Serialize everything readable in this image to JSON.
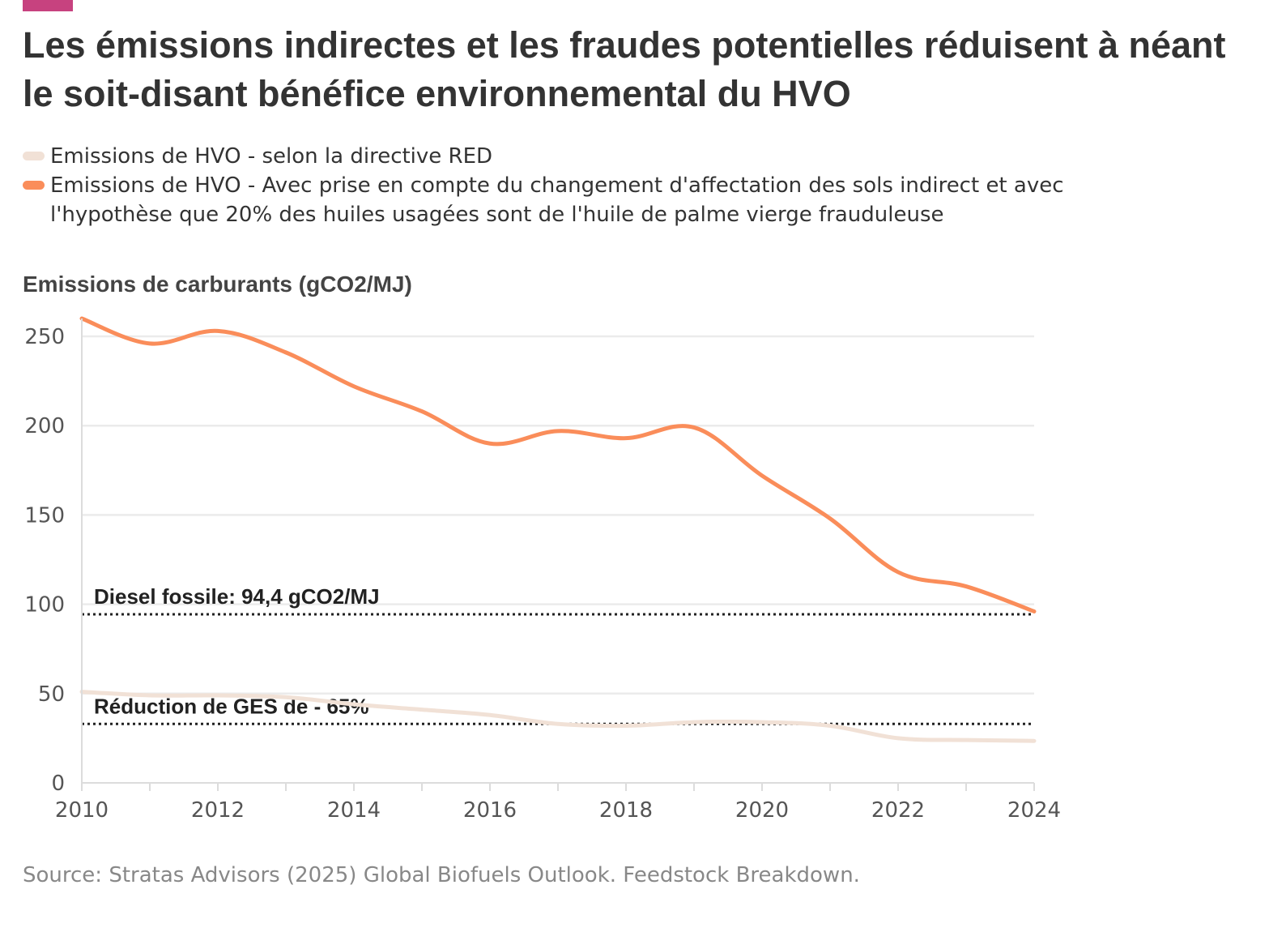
{
  "colors": {
    "accent": "#c7427f",
    "series_red": "#f1e1d6",
    "series_iluc": "#fa8d5a",
    "grid": "#ebebeb",
    "axis": "#dcdcdc",
    "reference_line": "#222222"
  },
  "title": "Les émissions indirectes et les fraudes potentielles réduisent à néant le soit-disant bénéfice environnemental du HVO",
  "legend": [
    {
      "label": "Emissions de HVO - selon la directive RED",
      "color_key": "series_red"
    },
    {
      "label": "Emissions de HVO - Avec prise en compte du changement d'affectation des sols indirect et avec l'hypothèse que 20% des huiles usagées sont de l'huile de palme vierge frauduleuse",
      "color_key": "series_iluc"
    }
  ],
  "source": "Source: Stratas Advisors (2025) Global Biofuels Outlook. Feedstock Breakdown.",
  "chart_data": {
    "type": "line",
    "title": "Les émissions indirectes et les fraudes potentielles réduisent à néant le soit-disant bénéfice environnemental du HVO",
    "ylabel": "Emissions de carburants (gCO2/MJ)",
    "xlabel": "",
    "x": [
      2010,
      2011,
      2012,
      2013,
      2014,
      2015,
      2016,
      2017,
      2018,
      2019,
      2020,
      2021,
      2022,
      2023,
      2024
    ],
    "xlim": [
      2010,
      2024
    ],
    "ylim": [
      0,
      260
    ],
    "x_ticks": [
      "2010",
      "2012",
      "2014",
      "2016",
      "2018",
      "2020",
      "2022",
      "2024"
    ],
    "y_ticks": [
      "0",
      "50",
      "100",
      "150",
      "200",
      "250"
    ],
    "grid": true,
    "legend_position": "top-left",
    "series": [
      {
        "name": "Emissions de HVO - selon la directive RED",
        "color_key": "series_red",
        "values": [
          51,
          49,
          49,
          48,
          44,
          41,
          38,
          33,
          32,
          34,
          34,
          32,
          25,
          24,
          23.5
        ]
      },
      {
        "name": "Emissions de HVO - Avec prise en compte du changement d'affectation des sols indirect et avec l'hypothèse que 20% des huiles usagées sont de l'huile de palme vierge frauduleuse",
        "color_key": "series_iluc",
        "values": [
          260,
          246,
          253,
          241,
          222,
          208,
          190,
          197,
          193,
          199,
          172,
          148,
          118,
          110,
          96
        ]
      }
    ],
    "reference_lines": [
      {
        "label": "Diesel fossile: 94,4 gCO2/MJ",
        "value": 94.4
      },
      {
        "label": "Réduction de GES de - 65%",
        "value": 33
      }
    ]
  }
}
